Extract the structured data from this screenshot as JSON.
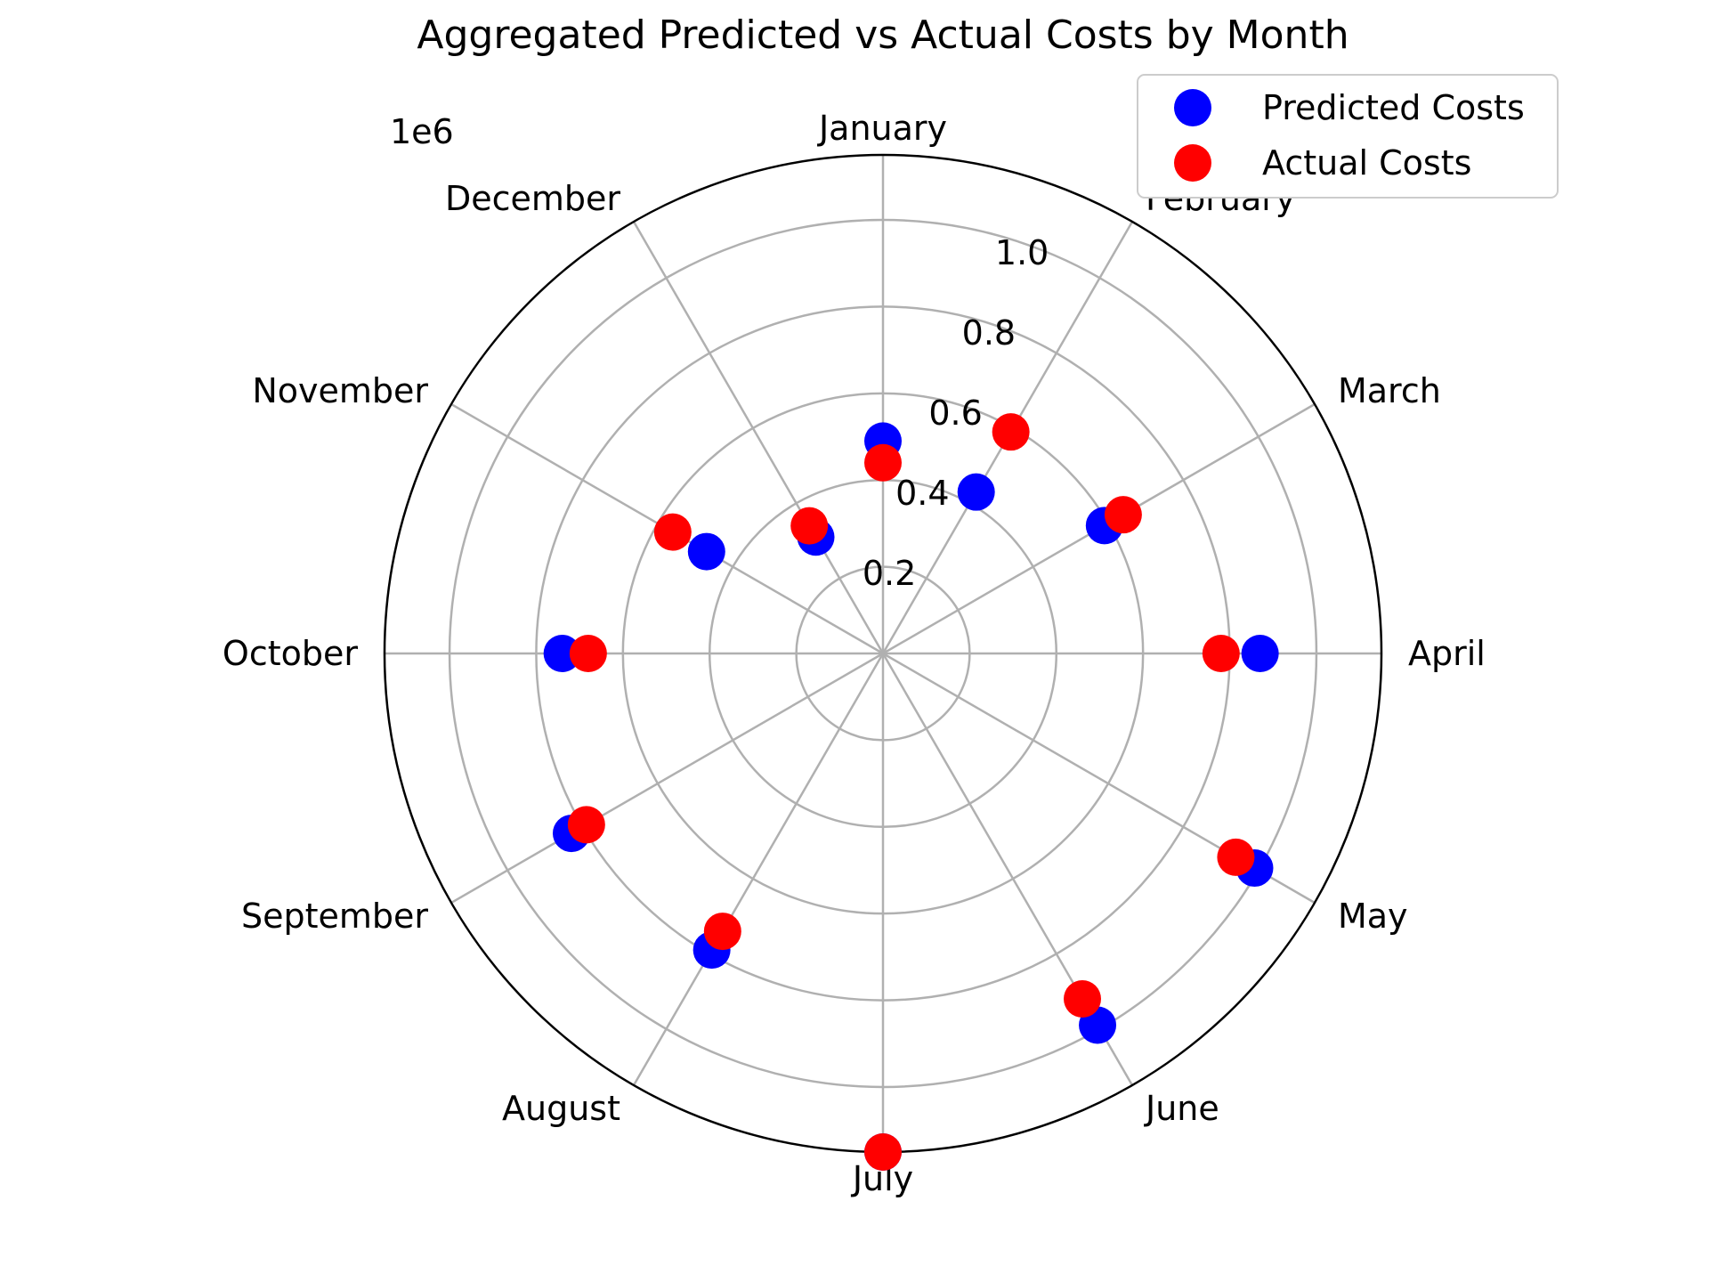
{
  "chart_data": {
    "type": "scatter",
    "projection": "polar",
    "title": "Aggregated Predicted vs Actual Costs by Month",
    "categories": [
      "January",
      "February",
      "March",
      "April",
      "May",
      "June",
      "July",
      "August",
      "September",
      "October",
      "November",
      "December"
    ],
    "series": [
      {
        "name": "Predicted Costs",
        "color": "#0000ff",
        "values": [
          490000,
          430000,
          590000,
          870000,
          990000,
          990000,
          1150000,
          790000,
          830000,
          740000,
          470000,
          310000
        ]
      },
      {
        "name": "Actual Costs",
        "color": "#ff0000",
        "values": [
          440000,
          590000,
          640000,
          780000,
          940000,
          920000,
          1150000,
          740000,
          790000,
          680000,
          560000,
          340000
        ]
      }
    ],
    "r_ticks": [
      "0.2",
      "0.4",
      "0.6",
      "0.8",
      "1.0"
    ],
    "r_tick_values": [
      200000,
      400000,
      600000,
      800000,
      1000000
    ],
    "r_scale_label": "1e6",
    "rlim": [
      0,
      1150000
    ],
    "theta_zero": "top",
    "theta_direction": "clockwise",
    "grid": true,
    "legend_position": "top-right"
  }
}
